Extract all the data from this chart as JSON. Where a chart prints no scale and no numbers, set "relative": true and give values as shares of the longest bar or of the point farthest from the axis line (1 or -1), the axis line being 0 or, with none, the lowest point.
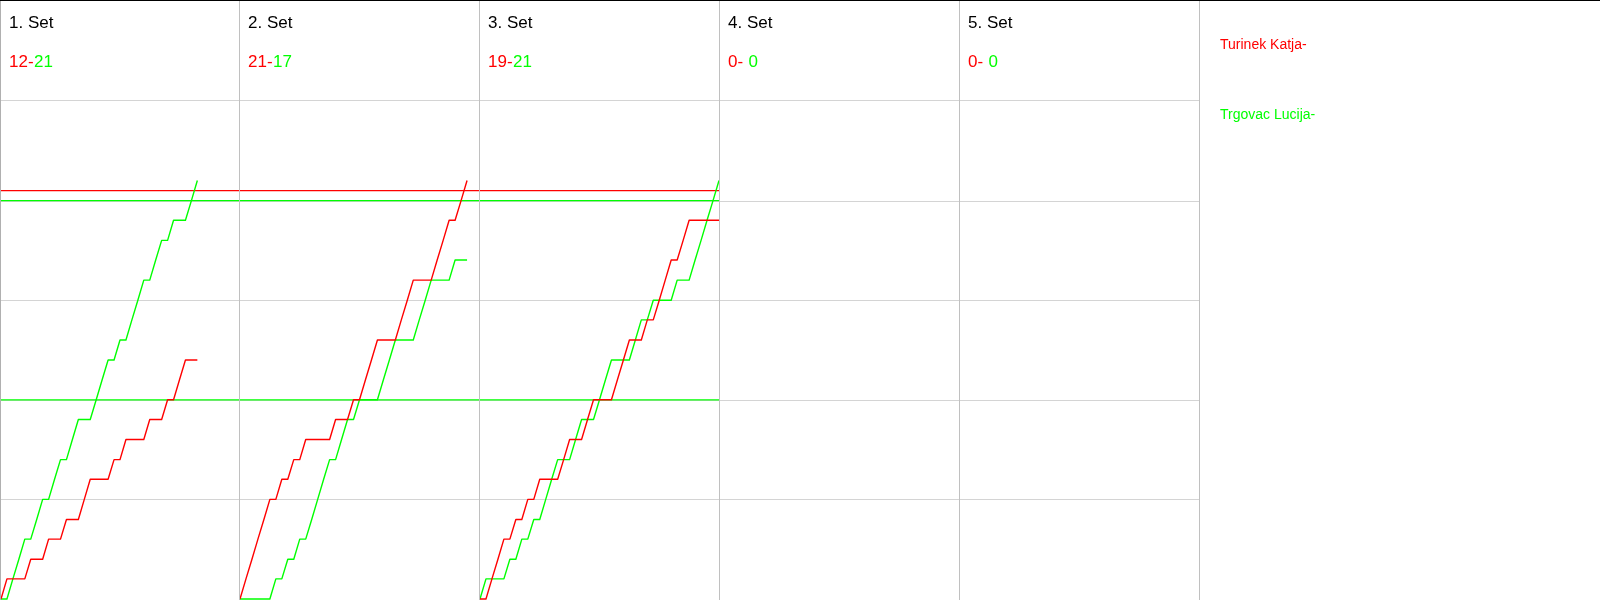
{
  "chart_data": [
    {
      "type": "line",
      "title": "1. Set",
      "annotations": [
        "12-",
        "21"
      ],
      "relative": true,
      "grid": true,
      "marker": "none",
      "line_style": "solid",
      "categories": [
        null,
        null,
        null,
        null,
        null,
        null,
        null,
        null,
        null,
        null,
        null,
        null,
        null,
        null,
        null,
        null,
        null,
        null,
        null,
        null,
        null,
        null,
        null,
        null,
        null,
        null,
        null,
        null,
        null,
        null,
        null,
        null,
        null,
        null,
        null,
        null,
        null,
        null,
        null,
        null,
        null
      ],
      "series": [
        {
          "color": "#ff0000",
          "values": [
            0,
            0.048,
            0.048,
            0.048,
            0.048,
            0.095,
            0.095,
            0.095,
            0.143,
            0.143,
            0.143,
            0.19,
            0.19,
            0.19,
            0.238,
            0.286,
            0.286,
            0.286,
            0.286,
            0.333,
            0.333,
            0.381,
            0.381,
            0.381,
            0.381,
            0.429,
            0.429,
            0.429,
            0.476,
            0.476,
            0.524,
            0.571,
            0.571,
            0.571,
            null,
            null,
            null,
            null,
            null,
            null,
            null
          ]
        },
        {
          "color": "#00ff00",
          "values": [
            0,
            0,
            0.048,
            0.095,
            0.143,
            0.143,
            0.19,
            0.238,
            0.238,
            0.286,
            0.333,
            0.333,
            0.381,
            0.429,
            0.429,
            0.429,
            0.476,
            0.524,
            0.571,
            0.571,
            0.619,
            0.619,
            0.667,
            0.714,
            0.762,
            0.762,
            0.81,
            0.857,
            0.857,
            0.905,
            0.905,
            0.905,
            0.952,
            1,
            null,
            null,
            null,
            null,
            null,
            null,
            null
          ]
        }
      ],
      "ref_lines": [
        {
          "axis": "y",
          "value": 0.976,
          "color": "#ff0000"
        },
        {
          "axis": "y",
          "value": 0.952,
          "color": "#00ff00"
        },
        {
          "axis": "y",
          "value": 0.476,
          "color": "#00ff00"
        }
      ]
    },
    {
      "type": "line",
      "title": "2. Set",
      "annotations": [
        "21-",
        "17"
      ],
      "relative": true,
      "grid": true,
      "marker": "none",
      "line_style": "solid",
      "categories": [
        null,
        null,
        null,
        null,
        null,
        null,
        null,
        null,
        null,
        null,
        null,
        null,
        null,
        null,
        null,
        null,
        null,
        null,
        null,
        null,
        null,
        null,
        null,
        null,
        null,
        null,
        null,
        null,
        null,
        null,
        null,
        null,
        null,
        null,
        null,
        null,
        null,
        null,
        null,
        null,
        null
      ],
      "series": [
        {
          "color": "#ff0000",
          "values": [
            0,
            0.048,
            0.095,
            0.143,
            0.19,
            0.238,
            0.238,
            0.286,
            0.286,
            0.333,
            0.333,
            0.381,
            0.381,
            0.381,
            0.381,
            0.381,
            0.429,
            0.429,
            0.429,
            0.476,
            0.476,
            0.524,
            0.571,
            0.619,
            0.619,
            0.619,
            0.619,
            0.667,
            0.714,
            0.762,
            0.762,
            0.762,
            0.762,
            0.81,
            0.857,
            0.905,
            0.905,
            0.952,
            1,
            null,
            null
          ]
        },
        {
          "color": "#00ff00",
          "values": [
            0,
            0,
            0,
            0,
            0,
            0,
            0.048,
            0.048,
            0.095,
            0.095,
            0.143,
            0.143,
            0.19,
            0.238,
            0.286,
            0.333,
            0.333,
            0.381,
            0.429,
            0.429,
            0.476,
            0.476,
            0.476,
            0.476,
            0.524,
            0.571,
            0.619,
            0.619,
            0.619,
            0.619,
            0.667,
            0.714,
            0.762,
            0.762,
            0.762,
            0.762,
            0.81,
            0.81,
            0.81,
            null,
            null
          ]
        }
      ],
      "ref_lines": [
        {
          "axis": "y",
          "value": 0.976,
          "color": "#ff0000"
        },
        {
          "axis": "y",
          "value": 0.952,
          "color": "#00ff00"
        },
        {
          "axis": "y",
          "value": 0.476,
          "color": "#00ff00"
        }
      ]
    },
    {
      "type": "line",
      "title": "3. Set",
      "annotations": [
        "19-",
        "21"
      ],
      "relative": true,
      "grid": true,
      "marker": "none",
      "line_style": "solid",
      "categories": [
        null,
        null,
        null,
        null,
        null,
        null,
        null,
        null,
        null,
        null,
        null,
        null,
        null,
        null,
        null,
        null,
        null,
        null,
        null,
        null,
        null,
        null,
        null,
        null,
        null,
        null,
        null,
        null,
        null,
        null,
        null,
        null,
        null,
        null,
        null,
        null,
        null,
        null,
        null,
        null,
        null
      ],
      "series": [
        {
          "color": "#ff0000",
          "values": [
            0,
            0,
            0.048,
            0.095,
            0.143,
            0.143,
            0.19,
            0.19,
            0.238,
            0.238,
            0.286,
            0.286,
            0.286,
            0.286,
            0.333,
            0.381,
            0.381,
            0.381,
            0.429,
            0.476,
            0.476,
            0.476,
            0.476,
            0.524,
            0.571,
            0.619,
            0.619,
            0.619,
            0.667,
            0.667,
            0.714,
            0.762,
            0.81,
            0.81,
            0.857,
            0.905,
            0.905,
            0.905,
            0.905,
            0.905,
            0.905
          ]
        },
        {
          "color": "#00ff00",
          "values": [
            0,
            0.048,
            0.048,
            0.048,
            0.048,
            0.095,
            0.095,
            0.143,
            0.143,
            0.19,
            0.19,
            0.238,
            0.286,
            0.333,
            0.333,
            0.333,
            0.381,
            0.429,
            0.429,
            0.429,
            0.476,
            0.524,
            0.571,
            0.571,
            0.571,
            0.571,
            0.619,
            0.667,
            0.667,
            0.714,
            0.714,
            0.714,
            0.714,
            0.762,
            0.762,
            0.762,
            0.81,
            0.857,
            0.905,
            0.952,
            1
          ]
        }
      ],
      "ref_lines": [
        {
          "axis": "y",
          "value": 0.976,
          "color": "#ff0000"
        },
        {
          "axis": "y",
          "value": 0.952,
          "color": "#00ff00"
        },
        {
          "axis": "y",
          "value": 0.476,
          "color": "#00ff00"
        }
      ]
    },
    {
      "type": "other",
      "title": "4. Set",
      "annotations": [
        "0-",
        "0"
      ],
      "series": [
        {
          "color": "#ff0000"
        },
        {
          "color": "#00ff00"
        }
      ]
    },
    {
      "type": "other",
      "title": "5. Set",
      "annotations": [
        "0-",
        "0"
      ],
      "series": [
        {
          "name": "Turinek Katja-",
          "color": "#ff0000"
        },
        {
          "name": "Trgovac Lucija-",
          "color": "#00ff00"
        }
      ]
    }
  ]
}
